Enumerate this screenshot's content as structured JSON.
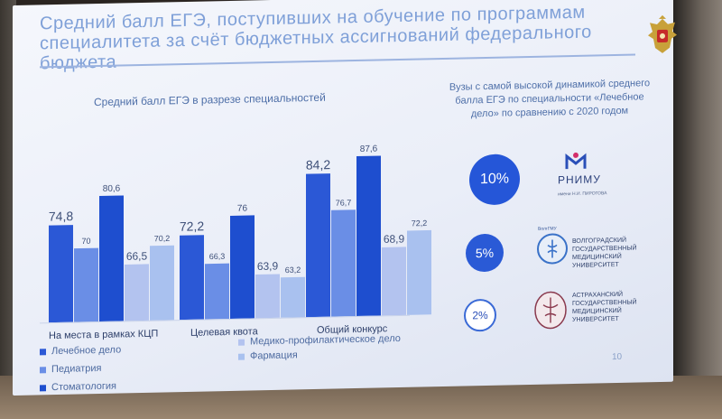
{
  "title": "Средний балл ЕГЭ, поступивших на обучение по программам специалитета за счёт бюджетных ассигнований федерального бюджета",
  "page_number": "10",
  "left_heading": "Средний балл ЕГЭ в разрезе специальностей",
  "right_heading": "Вузы с самой высокой динамикой среднего балла ЕГЭ по специальности «Лечебное дело» по сравнению с 2020 годом",
  "colors": {
    "lechebnoe": "#2b58d6",
    "pediatria": "#6a8ee6",
    "stomatologia": "#1e4ecf",
    "mpd": "#b3c3ef",
    "farmacia": "#a9c1ef",
    "title": "#7fa0d8"
  },
  "chart_data": {
    "type": "bar",
    "title": "Средний балл ЕГЭ в разрезе специальностей",
    "categories": [
      "На места в рамках КЦП",
      "Целевая квота",
      "Общий конкурс"
    ],
    "series": [
      {
        "name": "Лечебное дело",
        "values": [
          74.8,
          72.2,
          84.2
        ],
        "labels": [
          "74,8",
          "72,2",
          "84,2"
        ]
      },
      {
        "name": "Педиатрия",
        "values": [
          70,
          66.3,
          76.7
        ],
        "labels": [
          "70",
          "66,3",
          "76,7"
        ]
      },
      {
        "name": "Стоматология",
        "values": [
          80.6,
          76,
          87.6
        ],
        "labels": [
          "80,6",
          "76",
          "87,6"
        ]
      },
      {
        "name": "Медико-профилактическое дело",
        "values": [
          66.5,
          63.9,
          68.9
        ],
        "labels": [
          "66,5",
          "63,9",
          "68,9"
        ]
      },
      {
        "name": "Фармация",
        "values": [
          70.2,
          63.2,
          72.2
        ],
        "labels": [
          "70,2",
          "63,2",
          "72,2"
        ]
      }
    ],
    "legend_position": "bottom",
    "grid": false
  },
  "universities": [
    {
      "percent": "10%",
      "logo_text": "РНИМУ",
      "logo_sub": "имени Н.И. ПИРОГОВА"
    },
    {
      "percent": "5%",
      "logo_text": "ВОЛГОГРАДСКИЙ ГОСУДАРСТВЕННЫЙ МЕДИЦИНСКИЙ УНИВЕРСИТЕТ",
      "logo_sub": "ВолгГМУ"
    },
    {
      "percent": "2%",
      "logo_text": "АСТРАХАНСКИЙ ГОСУДАРСТВЕННЫЙ МЕДИЦИНСКИЙ УНИВЕРСИТЕТ",
      "logo_sub": ""
    }
  ]
}
